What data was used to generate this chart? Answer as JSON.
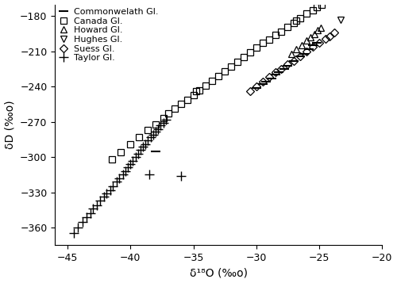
{
  "xlabel": "δ¹⁸O (‰o)",
  "ylabel": "δD (‰o)",
  "xlim": [
    -46,
    -20
  ],
  "ylim": [
    -375,
    -170
  ],
  "xticks": [
    -45,
    -40,
    -35,
    -30,
    -25,
    -20
  ],
  "yticks": [
    -360,
    -330,
    -300,
    -270,
    -240,
    -210,
    -180
  ],
  "commonwealth": {
    "x": [
      -38.0,
      -30.0,
      -29.5,
      -29.2,
      -28.8,
      -28.5,
      -28.2,
      -27.8,
      -27.5,
      -27.0,
      -26.5,
      -26.2,
      -25.8,
      -25.5,
      -25.2
    ],
    "y": [
      -295,
      -241,
      -238,
      -236,
      -233,
      -230,
      -228,
      -225,
      -222,
      -218,
      -214,
      -212,
      -208,
      -205,
      -203
    ]
  },
  "canada": {
    "x": [
      -41.5,
      -40.8,
      -40.0,
      -39.3,
      -38.6,
      -38.0,
      -37.4,
      -37.0,
      -36.5,
      -36.0,
      -35.5,
      -35.0,
      -34.5,
      -34.0,
      -33.5,
      -33.0,
      -32.5,
      -32.0,
      -31.5,
      -31.0,
      -30.5,
      -30.0,
      -29.5,
      -29.0,
      -28.5,
      -28.0,
      -27.5,
      -27.0,
      -26.8,
      -26.5,
      -26.0,
      -25.5,
      -25.2,
      -24.8,
      -34.8
    ],
    "y": [
      -302,
      -296,
      -289,
      -283,
      -277,
      -272,
      -267,
      -263,
      -259,
      -255,
      -251,
      -247,
      -243,
      -239,
      -235,
      -231,
      -227,
      -223,
      -219,
      -215,
      -211,
      -207,
      -203,
      -200,
      -196,
      -193,
      -189,
      -186,
      -184,
      -182,
      -178,
      -175,
      -172,
      -170,
      -244
    ]
  },
  "howard": {
    "x": [
      -27.2,
      -26.8,
      -26.4,
      -26.0,
      -25.7,
      -25.4,
      -25.1,
      -24.9
    ],
    "y": [
      -212,
      -208,
      -205,
      -201,
      -198,
      -195,
      -192,
      -190
    ]
  },
  "hughes": {
    "x": [
      -23.3
    ],
    "y": [
      -183
    ]
  },
  "suess": {
    "x": [
      -30.5,
      -30.0,
      -29.5,
      -29.0,
      -28.5,
      -28.0,
      -27.5,
      -27.0,
      -26.5,
      -26.0,
      -25.5,
      -25.0,
      -24.5,
      -24.2,
      -23.8
    ],
    "y": [
      -244,
      -240,
      -236,
      -232,
      -228,
      -225,
      -221,
      -218,
      -214,
      -210,
      -206,
      -203,
      -199,
      -197,
      -194
    ]
  },
  "taylor": {
    "x": [
      -44.5,
      -44.2,
      -43.8,
      -43.5,
      -43.2,
      -43.0,
      -42.7,
      -42.4,
      -42.1,
      -41.9,
      -41.6,
      -41.4,
      -41.1,
      -40.9,
      -40.6,
      -40.4,
      -40.2,
      -40.0,
      -39.8,
      -39.6,
      -39.4,
      -39.2,
      -39.0,
      -38.8,
      -38.6,
      -38.4,
      -38.2,
      -38.0,
      -37.8,
      -37.6,
      -37.4,
      -37.2,
      -36.0,
      -38.5
    ],
    "y": [
      -365,
      -360,
      -355,
      -351,
      -348,
      -344,
      -341,
      -337,
      -334,
      -331,
      -328,
      -325,
      -321,
      -318,
      -315,
      -312,
      -309,
      -306,
      -303,
      -300,
      -297,
      -294,
      -291,
      -289,
      -286,
      -283,
      -281,
      -278,
      -276,
      -273,
      -271,
      -268,
      -316,
      -315
    ]
  },
  "marker_size": 5,
  "marker_color": "black",
  "label_fontsize": 10,
  "tick_fontsize": 9,
  "legend_fontsize": 8
}
